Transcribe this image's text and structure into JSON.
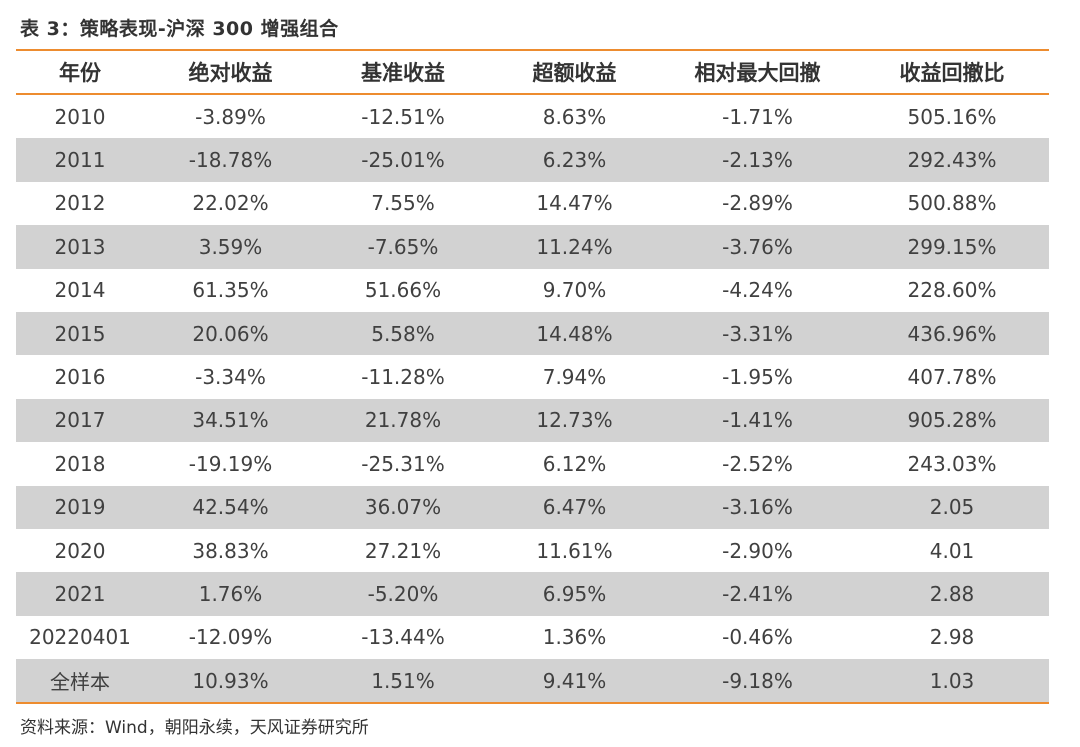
{
  "caption": "表 3：策略表现-沪深 300 增强组合",
  "table": {
    "headers": [
      "年份",
      "绝对收益",
      "基准收益",
      "超额收益",
      "相对最大回撤",
      "收益回撤比"
    ],
    "rows": [
      [
        "2010",
        "-3.89%",
        "-12.51%",
        "8.63%",
        "-1.71%",
        "505.16%"
      ],
      [
        "2011",
        "-18.78%",
        "-25.01%",
        "6.23%",
        "-2.13%",
        "292.43%"
      ],
      [
        "2012",
        "22.02%",
        "7.55%",
        "14.47%",
        "-2.89%",
        "500.88%"
      ],
      [
        "2013",
        "3.59%",
        "-7.65%",
        "11.24%",
        "-3.76%",
        "299.15%"
      ],
      [
        "2014",
        "61.35%",
        "51.66%",
        "9.70%",
        "-4.24%",
        "228.60%"
      ],
      [
        "2015",
        "20.06%",
        "5.58%",
        "14.48%",
        "-3.31%",
        "436.96%"
      ],
      [
        "2016",
        "-3.34%",
        "-11.28%",
        "7.94%",
        "-1.95%",
        "407.78%"
      ],
      [
        "2017",
        "34.51%",
        "21.78%",
        "12.73%",
        "-1.41%",
        "905.28%"
      ],
      [
        "2018",
        "-19.19%",
        "-25.31%",
        "6.12%",
        "-2.52%",
        "243.03%"
      ],
      [
        "2019",
        "42.54%",
        "36.07%",
        "6.47%",
        "-3.16%",
        "2.05"
      ],
      [
        "2020",
        "38.83%",
        "27.21%",
        "11.61%",
        "-2.90%",
        "4.01"
      ],
      [
        "2021",
        "1.76%",
        "-5.20%",
        "6.95%",
        "-2.41%",
        "2.88"
      ],
      [
        "20220401",
        "-12.09%",
        "-13.44%",
        "1.36%",
        "-0.46%",
        "2.98"
      ],
      [
        "全样本",
        "10.93%",
        "1.51%",
        "9.41%",
        "-9.18%",
        "1.03"
      ]
    ]
  },
  "source": "资料来源：Wind，朝阳永续，天风证券研究所",
  "colors": {
    "accent_line": "#ED8C2F",
    "stripe": "#D2D2D2"
  }
}
